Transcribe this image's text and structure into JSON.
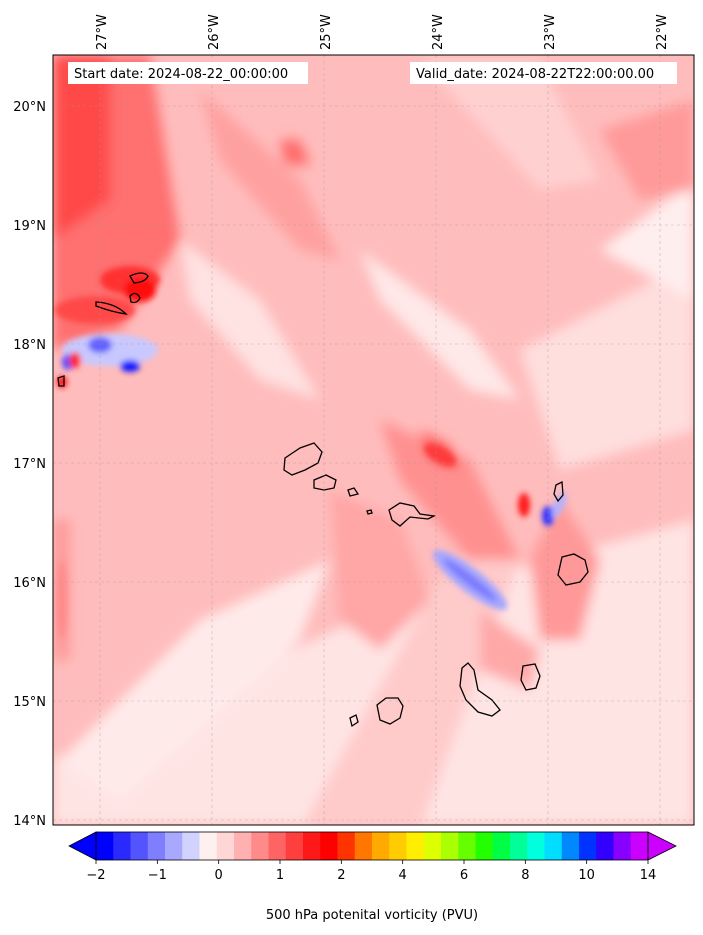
{
  "map": {
    "start_date": "Start date: 2024-08-22_00:00:00",
    "valid_date": "Valid_date: 2024-08-22T22:00:00.00",
    "lon_ticks": [
      "27°W",
      "26°W",
      "25°W",
      "24°W",
      "23°W",
      "22°W"
    ],
    "lat_ticks": [
      "20°N",
      "19°N",
      "18°N",
      "17°N",
      "16°N",
      "15°N",
      "14°N"
    ],
    "features": [
      "potential-vorticity-field",
      "coastline"
    ]
  },
  "colorbar": {
    "label": "500 hPa potenital vorticity (PVU)",
    "tick_labels": [
      "−2",
      "−1",
      "0",
      "1",
      "2",
      "4",
      "6",
      "8",
      "10",
      "14"
    ],
    "colors": [
      "#0000ff",
      "#2a2aff",
      "#5454ff",
      "#7e7eff",
      "#a8a8ff",
      "#d2d2ff",
      "#fff0f0",
      "#ffd6d6",
      "#ffb0b0",
      "#ff8a8a",
      "#ff6464",
      "#ff3e3e",
      "#ff1818",
      "#ff0000",
      "#ff3300",
      "#ff7700",
      "#ffaa00",
      "#ffcc00",
      "#ffee00",
      "#ddff00",
      "#aaff00",
      "#66ff00",
      "#22ff00",
      "#00ff44",
      "#00ff99",
      "#00ffdd",
      "#00ddff",
      "#0088ff",
      "#0033ff",
      "#3300ff",
      "#8800ff",
      "#cc00ff"
    ]
  }
}
